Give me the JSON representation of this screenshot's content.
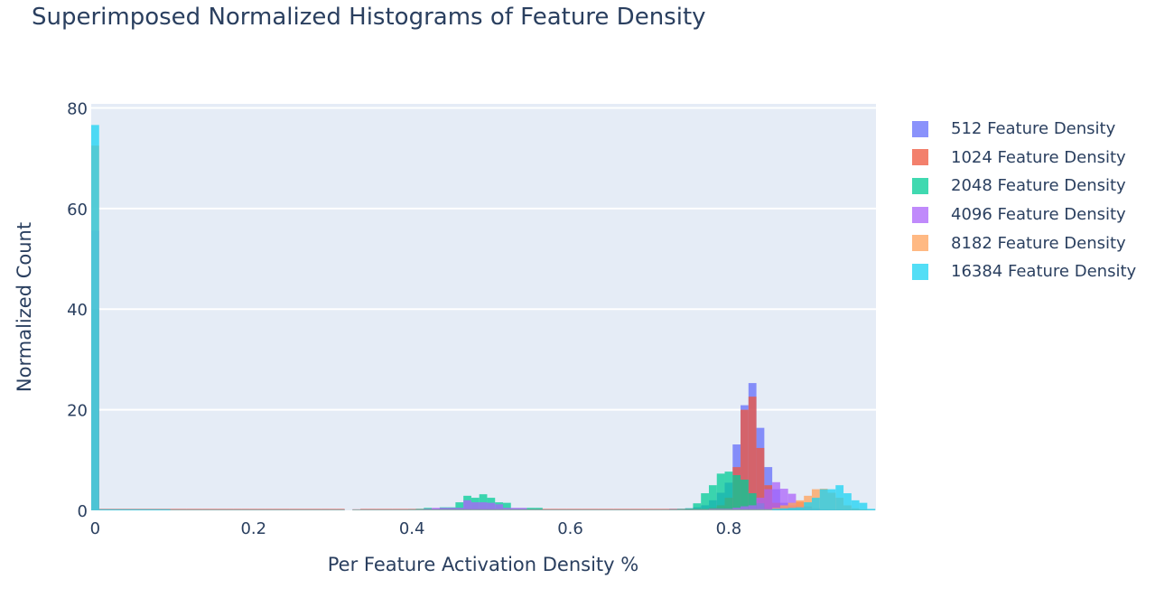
{
  "chart_data": {
    "type": "bar",
    "barmode": "overlay",
    "title": "Superimposed Normalized Histograms of Feature Density",
    "xlabel": "Per Feature Activation Density %",
    "ylabel": "Normalized Count",
    "xlim": [
      -0.005,
      0.986
    ],
    "ylim": [
      0,
      80.8
    ],
    "xticks": [
      "0",
      "0.2",
      "0.4",
      "0.6",
      "0.8"
    ],
    "xtick_values": [
      0,
      0.2,
      0.4,
      0.6,
      0.8
    ],
    "yticks": [
      "0",
      "20",
      "40",
      "60",
      "80"
    ],
    "ytick_values": [
      0,
      20,
      40,
      60,
      80
    ],
    "grid": true,
    "legend_position": "right",
    "bin_start": 0,
    "bin_size": 0.01,
    "series": [
      {
        "name": "512 Feature Density",
        "color": "#636efa",
        "values": [
          5,
          0.2,
          0.2,
          0.2,
          0.2,
          0.2,
          0.2,
          0.2,
          0.2,
          0.2,
          0.1,
          0.1,
          0.1,
          0.1,
          0.1,
          0.1,
          0.1,
          0.1,
          0.1,
          0.1,
          0.1,
          0.1,
          0.1,
          0.1,
          0.1,
          0.1,
          0.1,
          0.1,
          0.1,
          0.1,
          0.1,
          0.1,
          0,
          0.1,
          0.1,
          0.1,
          0.1,
          0.1,
          0.1,
          0.1,
          0.2,
          0.2,
          0.3,
          0.3,
          0.4,
          0.4,
          0.4,
          0.3,
          0.3,
          0.3,
          0.3,
          0.2,
          0.2,
          0.2,
          0.1,
          0.1,
          0.1,
          0.1,
          0.1,
          0.1,
          0.1,
          0.1,
          0.1,
          0.1,
          0.1,
          0.1,
          0.1,
          0.1,
          0.1,
          0.1,
          0.1,
          0.1,
          0.2,
          0.3,
          0.3,
          0.4,
          0.6,
          1.0,
          2.0,
          3.5,
          5.5,
          13.1,
          20.9,
          25.3,
          16.4,
          8.6,
          4.2,
          1.5,
          0.6,
          0.3,
          0.1,
          0.1,
          0.1,
          0.1,
          0.1,
          0.1,
          0.1,
          0.1,
          0.1
        ]
      },
      {
        "name": "1024 Feature Density",
        "color": "#EF553B",
        "values": [
          20,
          0.3,
          0.3,
          0.3,
          0.3,
          0.3,
          0.3,
          0.3,
          0.3,
          0.3,
          0.3,
          0.3,
          0.3,
          0.3,
          0.3,
          0.3,
          0.3,
          0.3,
          0.3,
          0.3,
          0.3,
          0.3,
          0.3,
          0.3,
          0.3,
          0.3,
          0.3,
          0.3,
          0.3,
          0.3,
          0.3,
          0.3,
          0,
          0.2,
          0.3,
          0.3,
          0.3,
          0.3,
          0.3,
          0.3,
          0.3,
          0.3,
          0.3,
          0.3,
          0.3,
          0.3,
          0.3,
          0.3,
          0.3,
          0.3,
          0.3,
          0.3,
          0.3,
          0.3,
          0.3,
          0.3,
          0.3,
          0.3,
          0.3,
          0.3,
          0.3,
          0.3,
          0.3,
          0.3,
          0.3,
          0.3,
          0.3,
          0.3,
          0.3,
          0.3,
          0.3,
          0.3,
          0.3,
          0.3,
          0.3,
          0.3,
          0.3,
          0.3,
          0.5,
          1.0,
          2.5,
          8.6,
          20.0,
          22.6,
          12.4,
          5.0,
          1.5,
          0.8,
          1.0,
          1.7,
          0.8,
          0.4,
          0.2,
          0.1,
          0.1,
          0.1,
          0.1,
          0.1,
          0
        ]
      },
      {
        "name": "2048 Feature Density",
        "color": "#00cc96",
        "values": [
          40,
          0.2,
          0.2,
          0.2,
          0.2,
          0.2,
          0.2,
          0.2,
          0.2,
          0.2,
          0.1,
          0.1,
          0.1,
          0.1,
          0.1,
          0.1,
          0.1,
          0.1,
          0.1,
          0.1,
          0.1,
          0.1,
          0.1,
          0.1,
          0.1,
          0.1,
          0.1,
          0.1,
          0.1,
          0.1,
          0.1,
          0.1,
          0,
          0.1,
          0.1,
          0.1,
          0.1,
          0.1,
          0.1,
          0.1,
          0.2,
          0.3,
          0.5,
          0.3,
          0.6,
          0.6,
          1.6,
          2.9,
          2.5,
          3.2,
          2.5,
          1.6,
          1.5,
          0.4,
          0.4,
          0.5,
          0.5,
          0.1,
          0.1,
          0.1,
          0.1,
          0.1,
          0.1,
          0.1,
          0.1,
          0.1,
          0.1,
          0.1,
          0.1,
          0.1,
          0.1,
          0.1,
          0.1,
          0.2,
          0.3,
          0.4,
          1.4,
          3.4,
          5.0,
          7.3,
          7.7,
          7.0,
          6.1,
          3.4,
          1.4,
          0.3,
          0.1,
          0.1,
          0.1,
          0.1,
          0.1,
          0.1,
          0.1,
          0.1,
          0,
          0,
          0,
          0,
          0
        ]
      },
      {
        "name": "4096 Feature Density",
        "color": "#ab63fa",
        "values": [
          55.6,
          0.2,
          0.2,
          0.2,
          0.2,
          0.2,
          0.2,
          0.2,
          0.2,
          0.2,
          0.2,
          0.2,
          0.2,
          0.2,
          0.2,
          0.2,
          0.2,
          0.2,
          0.2,
          0.2,
          0.2,
          0.2,
          0.2,
          0.2,
          0.2,
          0.2,
          0.2,
          0.2,
          0.2,
          0.2,
          0.2,
          0.2,
          0,
          0.2,
          0.2,
          0.2,
          0.2,
          0.2,
          0.2,
          0.2,
          0.2,
          0.2,
          0.3,
          0.5,
          0.5,
          0.5,
          0.5,
          2.0,
          1.6,
          1.6,
          1.5,
          1.2,
          0.5,
          0.5,
          0.5,
          0.2,
          0.2,
          0.2,
          0.2,
          0.2,
          0.2,
          0.2,
          0.2,
          0.2,
          0.2,
          0.2,
          0.2,
          0.2,
          0.2,
          0.2,
          0.2,
          0.2,
          0.2,
          0.2,
          0.2,
          0.2,
          0.2,
          0.2,
          0.3,
          0.3,
          0.3,
          0.5,
          0.8,
          1.0,
          2.5,
          4.2,
          5.6,
          4.3,
          3.3,
          0.8,
          0.5,
          0.3,
          0.2,
          0.1,
          0.1,
          0.1,
          0,
          0,
          0
        ]
      },
      {
        "name": "8182 Feature Density",
        "color": "#FFA15A",
        "values": [
          72.5,
          0.2,
          0.2,
          0.2,
          0.2,
          0.2,
          0.2,
          0.2,
          0.2,
          0.2,
          0.2,
          0.2,
          0.2,
          0.2,
          0.2,
          0.2,
          0.2,
          0.2,
          0.2,
          0.2,
          0.2,
          0.2,
          0.2,
          0.2,
          0.2,
          0.2,
          0.2,
          0.2,
          0.2,
          0.2,
          0.2,
          0.2,
          0,
          0.2,
          0.2,
          0.2,
          0.2,
          0.2,
          0.2,
          0.2,
          0.2,
          0.2,
          0.2,
          0.2,
          0.2,
          0.2,
          0.2,
          0.2,
          0.2,
          0.2,
          0.2,
          0.2,
          0.2,
          0.2,
          0.2,
          0.2,
          0.2,
          0.2,
          0.2,
          0.2,
          0.2,
          0.2,
          0.2,
          0.2,
          0.2,
          0.2,
          0.2,
          0.2,
          0.2,
          0.2,
          0.2,
          0.2,
          0.2,
          0.2,
          0.2,
          0.2,
          0.2,
          0.2,
          0.2,
          0.2,
          0.2,
          0.2,
          0.2,
          0.2,
          0.2,
          0.2,
          0.5,
          1.0,
          1.5,
          2.0,
          2.9,
          4.2,
          4.3,
          3.5,
          2.5,
          1.0,
          0.4,
          0.2,
          0.1
        ]
      },
      {
        "name": "16384 Feature Density",
        "color": "#19d3f3",
        "values": [
          76.6,
          0.2,
          0.2,
          0.2,
          0.2,
          0.2,
          0.2,
          0.2,
          0.2,
          0.2,
          0.1,
          0.1,
          0.1,
          0.1,
          0.1,
          0.1,
          0.1,
          0.1,
          0.1,
          0.1,
          0.1,
          0.1,
          0.1,
          0.1,
          0.1,
          0.1,
          0.1,
          0.1,
          0.1,
          0.1,
          0.1,
          0.1,
          0,
          0.1,
          0.1,
          0.1,
          0.1,
          0.1,
          0.1,
          0.1,
          0.1,
          0.1,
          0.1,
          0.1,
          0.1,
          0.1,
          0.1,
          0.1,
          0.1,
          0.1,
          0.1,
          0.1,
          0.1,
          0.1,
          0.1,
          0.1,
          0.1,
          0.1,
          0.1,
          0.1,
          0.1,
          0.1,
          0.1,
          0.1,
          0.1,
          0.1,
          0.1,
          0.1,
          0.1,
          0.1,
          0.1,
          0.1,
          0.1,
          0.1,
          0.1,
          0.1,
          0.1,
          0.1,
          0.1,
          0.1,
          0.1,
          0.1,
          0.1,
          0.1,
          0.1,
          0.1,
          0.3,
          0.4,
          0.5,
          0.6,
          1.6,
          2.5,
          4.2,
          4.2,
          5.0,
          3.4,
          2.0,
          1.5,
          0.3
        ]
      }
    ]
  }
}
